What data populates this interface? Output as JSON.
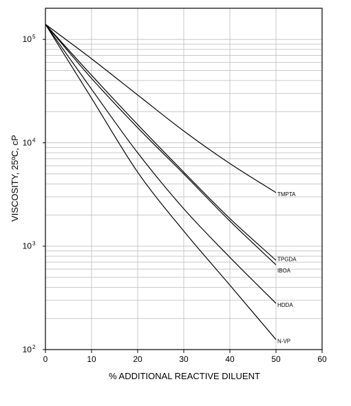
{
  "chart_data": {
    "type": "line",
    "title": "",
    "xlabel": "% ADDITIONAL REACTIVE DILUENT",
    "ylabel": "VISCOSITY, 25ºC, cP",
    "x_scale": "linear",
    "y_scale": "log",
    "xlim": [
      0,
      60
    ],
    "ylim": [
      100,
      200000
    ],
    "grid": true,
    "legend": "none (series labeled at line ends)",
    "x_ticks": [
      "0",
      "10",
      "20",
      "30",
      "40",
      "50",
      "60"
    ],
    "y_ticks": [
      {
        "value": 100,
        "base": "10",
        "exp": "2"
      },
      {
        "value": 1000,
        "base": "10",
        "exp": "3"
      },
      {
        "value": 10000,
        "base": "10",
        "exp": "4"
      },
      {
        "value": 100000,
        "base": "10",
        "exp": "5"
      }
    ],
    "colors": {
      "line": "#000000",
      "grid": "#c8c8c8",
      "axis": "#000000"
    },
    "series": [
      {
        "name": "TMPTA",
        "x": [
          0,
          10,
          20,
          30,
          40,
          50
        ],
        "y": [
          140000,
          65000,
          29000,
          13000,
          6300,
          3300
        ]
      },
      {
        "name": "TPGDA",
        "x": [
          0,
          10,
          20,
          30,
          40,
          50
        ],
        "y": [
          140000,
          45000,
          15000,
          5200,
          1850,
          730
        ]
      },
      {
        "name": "IBOA",
        "x": [
          0,
          10,
          20,
          30,
          40,
          50
        ],
        "y": [
          140000,
          42000,
          14000,
          5000,
          1750,
          660
        ]
      },
      {
        "name": "HDDA",
        "x": [
          0,
          10,
          20,
          30,
          40,
          50
        ],
        "y": [
          140000,
          33000,
          8000,
          2300,
          780,
          280
        ]
      },
      {
        "name": "N-VP",
        "x": [
          0,
          10,
          20,
          30,
          40,
          50
        ],
        "y": [
          140000,
          27000,
          5200,
          1400,
          420,
          125
        ]
      }
    ]
  }
}
